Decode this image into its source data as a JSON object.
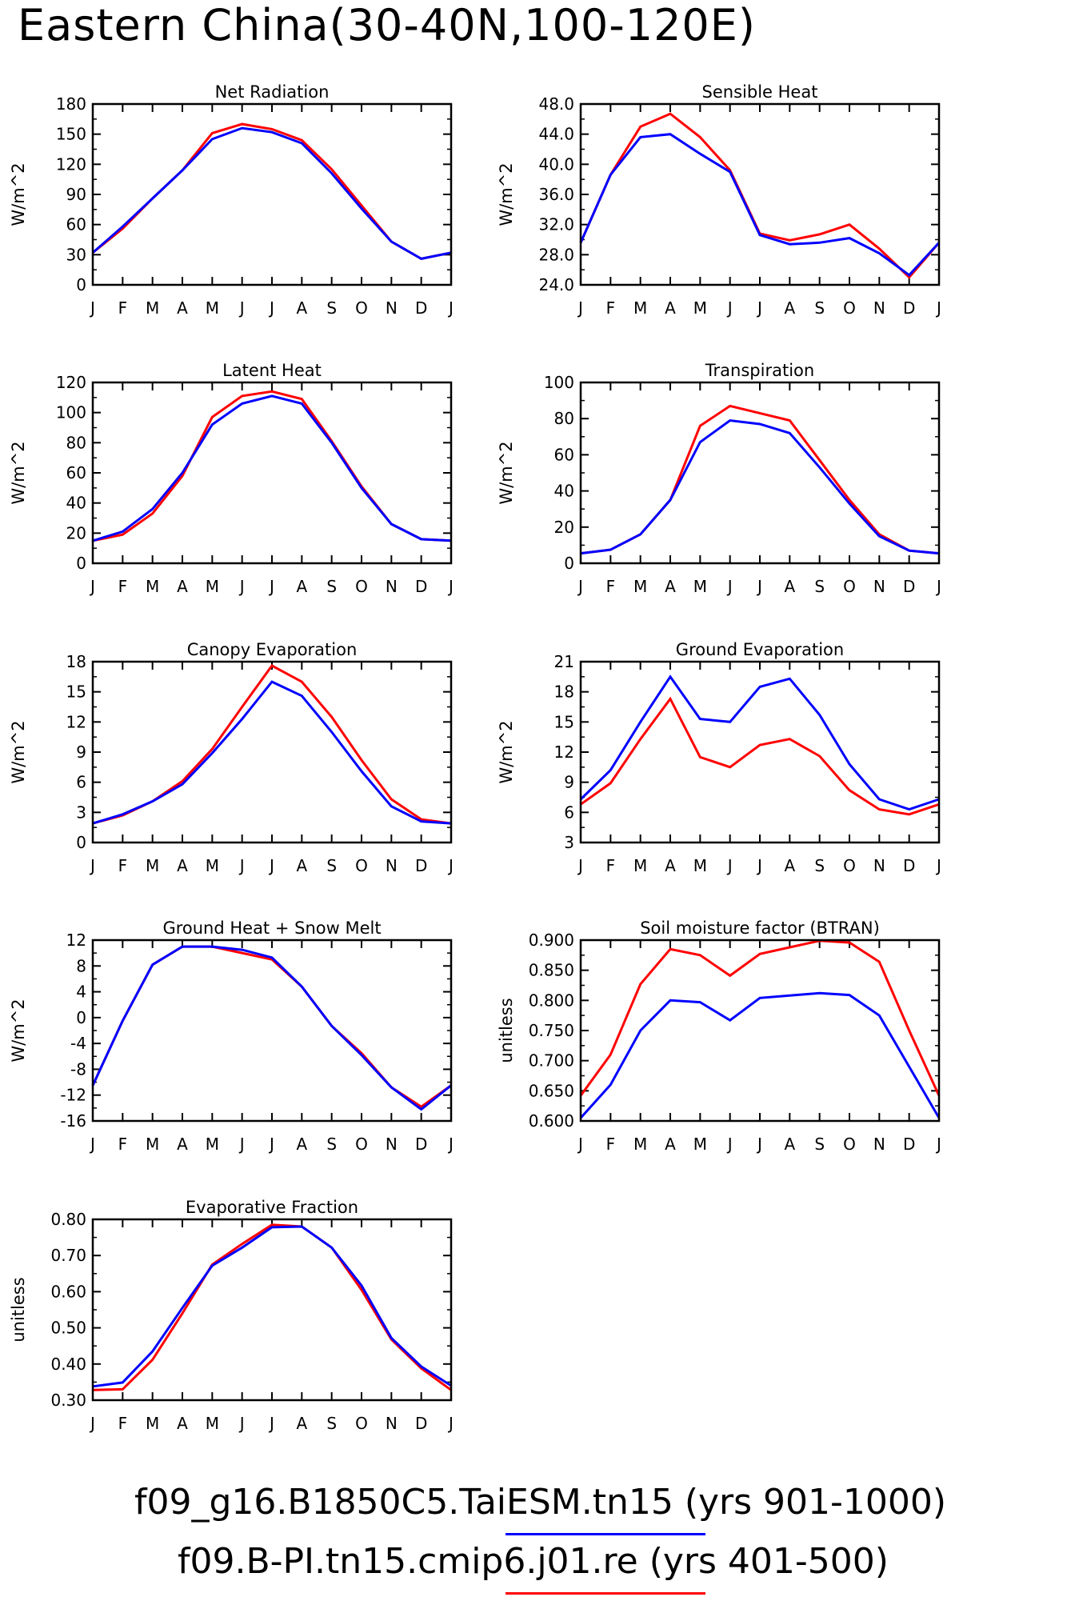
{
  "figure": {
    "title": "Eastern China(30-40N,100-120E)"
  },
  "colors": {
    "model_a": "#0000ff",
    "model_b": "#ff0000"
  },
  "legend": [
    {
      "label": "f09_g16.B1850C5.TaiESM.tn15 (yrs 901-1000)",
      "color": "#0000ff"
    },
    {
      "label": "f09.B-PI.tn15.cmip6.j01.re (yrs 401-500)",
      "color": "#ff0000"
    }
  ],
  "chart_data": [
    {
      "type": "line",
      "title": "Net Radiation",
      "ylabel": "W/m^2",
      "categories": [
        "J",
        "F",
        "M",
        "A",
        "M",
        "J",
        "J",
        "A",
        "S",
        "O",
        "N",
        "D",
        "J"
      ],
      "ylim": [
        0,
        180
      ],
      "yticks": [
        "0",
        "30",
        "60",
        "90",
        "120",
        "150",
        "180"
      ],
      "series": [
        {
          "color": "#0000ff",
          "values": [
            32,
            58,
            86,
            114,
            145,
            156,
            152,
            141,
            111,
            76,
            43,
            26,
            32
          ]
        },
        {
          "color": "#ff0000",
          "values": [
            32,
            56,
            86,
            114,
            151,
            160,
            155,
            144,
            115,
            79,
            43,
            26,
            32
          ]
        }
      ]
    },
    {
      "type": "line",
      "title": "Sensible Heat",
      "ylabel": "W/m^2",
      "categories": [
        "J",
        "F",
        "M",
        "A",
        "M",
        "J",
        "J",
        "A",
        "S",
        "O",
        "N",
        "D",
        "J"
      ],
      "ylim": [
        24,
        48
      ],
      "yticks": [
        "24.0",
        "28.0",
        "32.0",
        "36.0",
        "40.0",
        "44.0",
        "48.0"
      ],
      "series": [
        {
          "color": "#0000ff",
          "values": [
            29.6,
            38.6,
            43.6,
            44.0,
            41.4,
            39.0,
            30.6,
            29.4,
            29.6,
            30.2,
            28.2,
            25.3,
            29.6
          ]
        },
        {
          "color": "#ff0000",
          "values": [
            29.6,
            38.6,
            45.0,
            46.7,
            43.6,
            39.2,
            30.8,
            29.9,
            30.7,
            32.0,
            28.8,
            25.0,
            29.6
          ]
        }
      ]
    },
    {
      "type": "line",
      "title": "Latent Heat",
      "ylabel": "W/m^2",
      "categories": [
        "J",
        "F",
        "M",
        "A",
        "M",
        "J",
        "J",
        "A",
        "S",
        "O",
        "N",
        "D",
        "J"
      ],
      "ylim": [
        0,
        120
      ],
      "yticks": [
        "0",
        "20",
        "40",
        "60",
        "80",
        "100",
        "120"
      ],
      "series": [
        {
          "color": "#0000ff",
          "values": [
            15,
            21,
            36,
            60,
            92,
            106,
            111,
            106,
            80,
            50,
            26,
            16,
            15
          ]
        },
        {
          "color": "#ff0000",
          "values": [
            15,
            19,
            33,
            58,
            97,
            111,
            114,
            109,
            81,
            51,
            26,
            16,
            15
          ]
        }
      ]
    },
    {
      "type": "line",
      "title": "Transpiration",
      "ylabel": "W/m^2",
      "categories": [
        "J",
        "F",
        "M",
        "A",
        "M",
        "J",
        "J",
        "A",
        "S",
        "O",
        "N",
        "D",
        "J"
      ],
      "ylim": [
        0,
        100
      ],
      "yticks": [
        "0",
        "20",
        "40",
        "60",
        "80",
        "100"
      ],
      "series": [
        {
          "color": "#0000ff",
          "values": [
            5.5,
            7.5,
            16,
            35,
            67,
            79,
            77,
            72,
            53,
            33,
            15,
            7,
            5.5
          ]
        },
        {
          "color": "#ff0000",
          "values": [
            5.5,
            7.5,
            16,
            35,
            76,
            87,
            83,
            79,
            57,
            35,
            16,
            7,
            5.5
          ]
        }
      ]
    },
    {
      "type": "line",
      "title": "Canopy Evaporation",
      "ylabel": "W/m^2",
      "categories": [
        "J",
        "F",
        "M",
        "A",
        "M",
        "J",
        "J",
        "A",
        "S",
        "O",
        "N",
        "D",
        "J"
      ],
      "ylim": [
        0,
        18
      ],
      "yticks": [
        "0",
        "3",
        "6",
        "9",
        "12",
        "15",
        "18"
      ],
      "series": [
        {
          "color": "#0000ff",
          "values": [
            1.9,
            2.8,
            4.1,
            5.8,
            8.9,
            12.3,
            16.0,
            14.6,
            11.0,
            7.1,
            3.6,
            2.1,
            1.9
          ]
        },
        {
          "color": "#ff0000",
          "values": [
            1.9,
            2.7,
            4.1,
            6.1,
            9.3,
            13.5,
            17.6,
            16.0,
            12.5,
            8.2,
            4.3,
            2.3,
            1.9
          ]
        }
      ]
    },
    {
      "type": "line",
      "title": "Ground Evaporation",
      "ylabel": "W/m^2",
      "categories": [
        "J",
        "F",
        "M",
        "A",
        "M",
        "J",
        "J",
        "A",
        "S",
        "O",
        "N",
        "D",
        "J"
      ],
      "ylim": [
        3,
        21
      ],
      "yticks": [
        "3",
        "6",
        "9",
        "12",
        "15",
        "18",
        "21"
      ],
      "series": [
        {
          "color": "#0000ff",
          "values": [
            7.3,
            10.2,
            15.0,
            19.5,
            15.3,
            15.0,
            18.5,
            19.3,
            15.7,
            10.8,
            7.3,
            6.3,
            7.3
          ]
        },
        {
          "color": "#ff0000",
          "values": [
            6.8,
            8.9,
            13.3,
            17.3,
            11.5,
            10.5,
            12.7,
            13.3,
            11.6,
            8.2,
            6.3,
            5.8,
            6.8
          ]
        }
      ]
    },
    {
      "type": "line",
      "title": "Ground Heat + Snow Melt",
      "ylabel": "W/m^2",
      "categories": [
        "J",
        "F",
        "M",
        "A",
        "M",
        "J",
        "J",
        "A",
        "S",
        "O",
        "N",
        "D",
        "J"
      ],
      "ylim": [
        -16,
        12
      ],
      "yticks": [
        "-16",
        "-12",
        "-8",
        "-4",
        "0",
        "4",
        "8",
        "12"
      ],
      "series": [
        {
          "color": "#0000ff",
          "values": [
            -10.5,
            -0.5,
            8.2,
            11.0,
            11.0,
            10.5,
            9.3,
            4.8,
            -1.3,
            -5.8,
            -10.8,
            -14.2,
            -10.5
          ]
        },
        {
          "color": "#ff0000",
          "values": [
            -10.5,
            -0.5,
            8.2,
            11.0,
            11.0,
            10.0,
            9.0,
            4.8,
            -1.3,
            -5.5,
            -10.8,
            -13.8,
            -10.5
          ]
        }
      ]
    },
    {
      "type": "line",
      "title": "Soil moisture factor (BTRAN)",
      "ylabel": "unitless",
      "categories": [
        "J",
        "F",
        "M",
        "A",
        "M",
        "J",
        "J",
        "A",
        "S",
        "O",
        "N",
        "D",
        "J"
      ],
      "ylim": [
        0.6,
        0.9
      ],
      "yticks": [
        "0.600",
        "0.650",
        "0.700",
        "0.750",
        "0.800",
        "0.850",
        "0.900"
      ],
      "series": [
        {
          "color": "#0000ff",
          "values": [
            0.605,
            0.66,
            0.75,
            0.8,
            0.797,
            0.767,
            0.804,
            0.808,
            0.812,
            0.809,
            0.775,
            0.69,
            0.605
          ]
        },
        {
          "color": "#ff0000",
          "values": [
            0.642,
            0.71,
            0.827,
            0.885,
            0.875,
            0.841,
            0.877,
            0.888,
            0.899,
            0.896,
            0.864,
            0.75,
            0.642
          ]
        }
      ]
    },
    {
      "type": "line",
      "title": "Evaporative Fraction",
      "ylabel": "unitless",
      "categories": [
        "J",
        "F",
        "M",
        "A",
        "M",
        "J",
        "J",
        "A",
        "S",
        "O",
        "N",
        "D",
        "J"
      ],
      "ylim": [
        0.3,
        0.8
      ],
      "yticks": [
        "0.30",
        "0.40",
        "0.50",
        "0.60",
        "0.70",
        "0.80"
      ],
      "series": [
        {
          "color": "#0000ff",
          "values": [
            0.338,
            0.349,
            0.435,
            0.555,
            0.672,
            0.722,
            0.778,
            0.78,
            0.722,
            0.617,
            0.472,
            0.393,
            0.34
          ]
        },
        {
          "color": "#ff0000",
          "values": [
            0.328,
            0.33,
            0.412,
            0.54,
            0.675,
            0.732,
            0.785,
            0.78,
            0.722,
            0.605,
            0.468,
            0.388,
            0.328
          ]
        }
      ]
    }
  ]
}
